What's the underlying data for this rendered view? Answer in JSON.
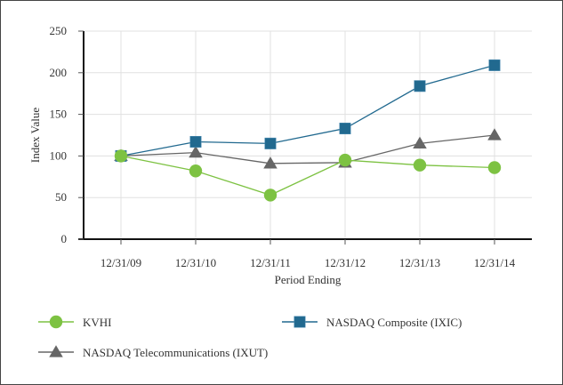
{
  "chart_data": {
    "type": "line",
    "title": "",
    "xlabel": "Period Ending",
    "ylabel": "Index Value",
    "categories": [
      "12/31/09",
      "12/31/10",
      "12/31/11",
      "12/31/12",
      "12/31/13",
      "12/31/14"
    ],
    "ylim": [
      0,
      250
    ],
    "yticks": [
      0,
      50,
      100,
      150,
      200,
      250
    ],
    "grid": true,
    "legend_position": "bottom",
    "series": [
      {
        "name": "KVHI",
        "marker": "circle",
        "color": "#7DC242",
        "values": [
          100,
          82,
          53,
          95,
          89,
          86
        ]
      },
      {
        "name": "NASDAQ Composite (IXIC)",
        "marker": "square",
        "color": "#21698F",
        "values": [
          100,
          117,
          115,
          133,
          184,
          209
        ]
      },
      {
        "name": "NASDAQ Telecommunications (IXUT)",
        "marker": "triangle",
        "color": "#666666",
        "values": [
          100,
          104,
          91,
          92,
          115,
          125
        ]
      }
    ]
  }
}
